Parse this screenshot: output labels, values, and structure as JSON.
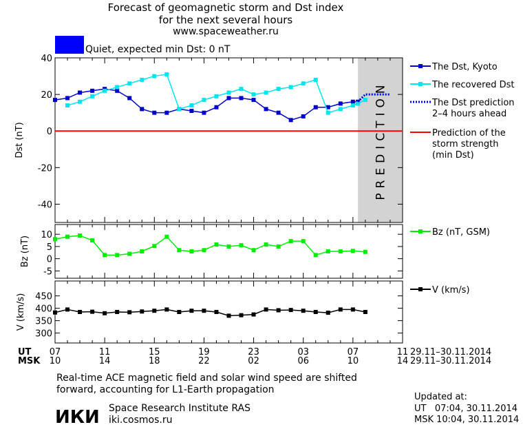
{
  "title": {
    "line1": "Forecast of geomagnetic storm and Dst index",
    "line2": "for the next several hours",
    "line3": "www.spaceweather.ru"
  },
  "status": {
    "label": "Quiet, expected min Dst: 0 nT",
    "color": "#0000ff"
  },
  "colors": {
    "dst": "#0000cc",
    "recovered": "#00e5ee",
    "storm": "#ff0000",
    "bz": "#00ee00",
    "v": "#000000",
    "prediction_band": "#d3d3d3"
  },
  "time_axis": {
    "ut_label": "UT",
    "msk_label": "MSK",
    "ut_ticks": [
      "07",
      "11",
      "15",
      "19",
      "23",
      "03",
      "07",
      "11"
    ],
    "msk_ticks": [
      "10",
      "14",
      "18",
      "22",
      "02",
      "06",
      "10",
      "14"
    ],
    "ut_range": "29.11–30.11.2014",
    "msk_range": "29.11–30.11.2014"
  },
  "prediction_label": "PREDICTION",
  "chart_data": [
    {
      "type": "line",
      "ylabel": "Dst (nT)",
      "ylim": [
        -50,
        40
      ],
      "yticks": [
        40,
        20,
        0,
        -20,
        -40
      ],
      "xlim": [
        7,
        35
      ],
      "prediction_start": 31.4,
      "storm_level": 0,
      "series": [
        {
          "name": "The Dst, Kyoto",
          "x": [
            7,
            8,
            9,
            10,
            11,
            12,
            13,
            14,
            15,
            16,
            17,
            18,
            19,
            20,
            21,
            22,
            23,
            24,
            25,
            26,
            27,
            28,
            29,
            30,
            31,
            31.4
          ],
          "y": [
            17,
            18,
            21,
            22,
            23,
            22,
            18,
            12,
            10,
            10,
            12,
            11,
            10,
            13,
            18,
            18,
            17,
            12,
            10,
            6,
            8,
            13,
            13,
            15,
            16,
            16
          ]
        },
        {
          "name": "The recovered Dst",
          "x": [
            8,
            9,
            10,
            11,
            12,
            13,
            14,
            15,
            16,
            17,
            18,
            19,
            20,
            21,
            22,
            23,
            24,
            25,
            26,
            27,
            28,
            29,
            30,
            31,
            31.4,
            32
          ],
          "y": [
            14,
            16,
            19,
            22,
            24,
            26,
            28,
            30,
            31,
            12,
            14,
            17,
            19,
            21,
            23,
            20,
            21,
            23,
            24,
            26,
            28,
            10,
            12,
            14,
            15,
            17
          ]
        },
        {
          "name": "The Dst prediction 2–4 hours ahead",
          "x": [
            31.4,
            32,
            33,
            34
          ],
          "y": [
            16,
            20,
            20,
            20
          ]
        },
        {
          "name": "Prediction of the storm strength (min Dst)",
          "x": [
            7,
            35
          ],
          "y": [
            0,
            0
          ]
        }
      ]
    },
    {
      "type": "line",
      "ylabel": "Bz (nT)",
      "ylim": [
        -8,
        14
      ],
      "yticks": [
        10,
        5,
        0,
        -5
      ],
      "xlim": [
        7,
        35
      ],
      "series": [
        {
          "name": "Bz (nT, GSM)",
          "x": [
            7,
            8,
            9,
            10,
            11,
            12,
            13,
            14,
            15,
            16,
            17,
            18,
            19,
            20,
            21,
            22,
            23,
            24,
            25,
            26,
            27,
            28,
            29,
            30,
            31,
            32
          ],
          "y": [
            8,
            9,
            9.5,
            7.5,
            1.5,
            1.5,
            2,
            3,
            5.2,
            9,
            3.5,
            3,
            3.5,
            5.8,
            5,
            5.5,
            3.5,
            5.8,
            5,
            7.2,
            7.2,
            1.5,
            3,
            3,
            3.2,
            2.8
          ]
        }
      ]
    },
    {
      "type": "line",
      "ylabel": "V (km/s)",
      "ylim": [
        260,
        510
      ],
      "yticks": [
        450,
        400,
        350,
        300
      ],
      "xlim": [
        7,
        35
      ],
      "series": [
        {
          "name": "V (km/s)",
          "x": [
            7,
            8,
            9,
            10,
            11,
            12,
            13,
            14,
            15,
            16,
            17,
            18,
            19,
            20,
            21,
            22,
            23,
            24,
            25,
            26,
            27,
            28,
            29,
            30,
            31,
            32
          ],
          "y": [
            383,
            395,
            385,
            386,
            380,
            385,
            384,
            387,
            390,
            395,
            385,
            390,
            390,
            385,
            370,
            372,
            375,
            395,
            392,
            393,
            390,
            385,
            382,
            395,
            395,
            385
          ]
        }
      ]
    }
  ],
  "footer": {
    "note_line1": "Real-time ACE magnetic field and solar wind speed are shifted",
    "note_line2": "forward, accounting for L1-Earth propagation",
    "institute_logo": "ИКИ",
    "institute_name": "Space Research Institute RAS",
    "institute_url": "iki.cosmos.ru",
    "updated_label": "Updated at:",
    "updated_ut": "UT   07:04, 30.11.2014",
    "updated_msk": "MSK 10:04, 30.11.2014"
  }
}
